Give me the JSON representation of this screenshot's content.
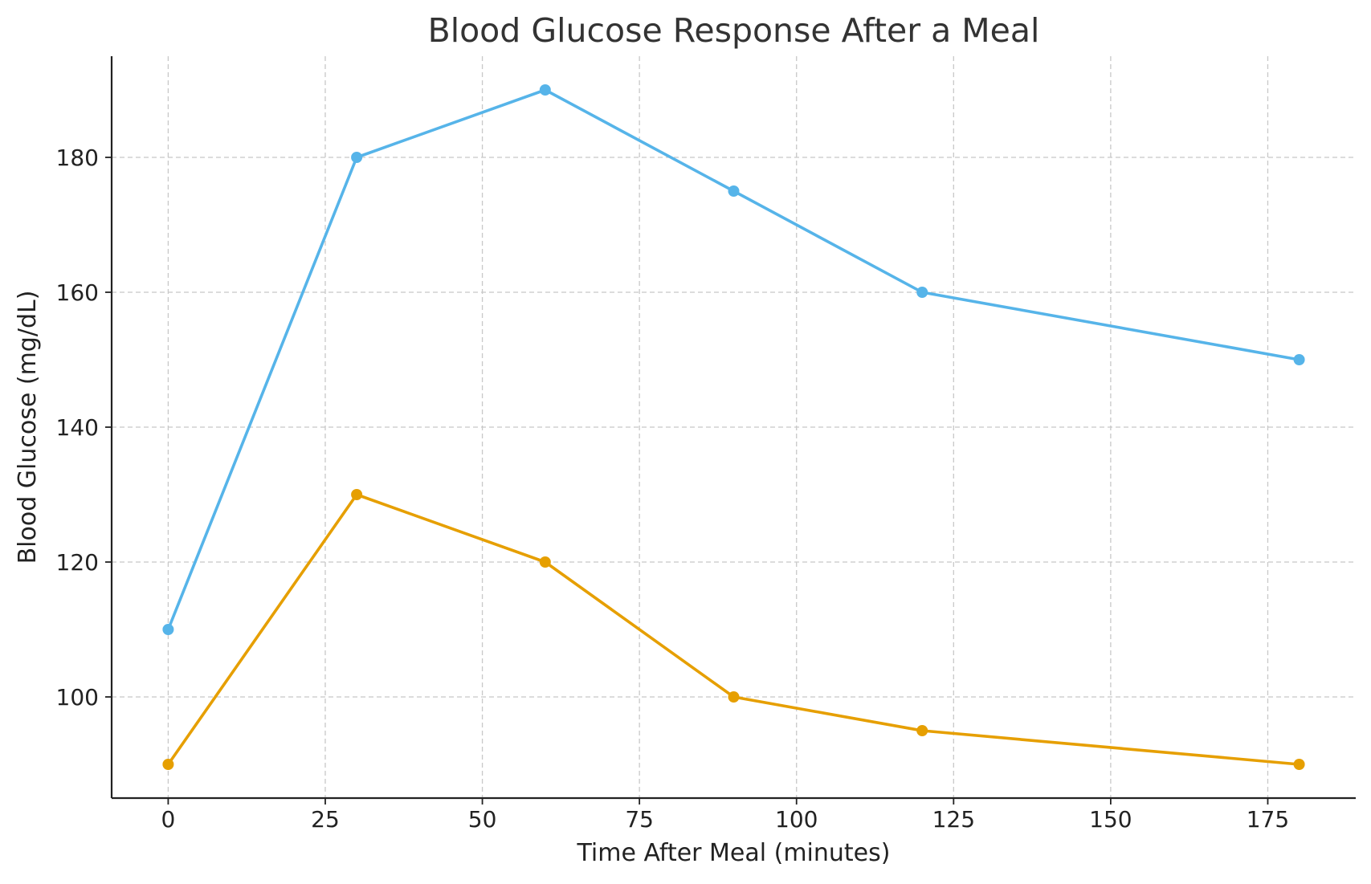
{
  "chart_data": {
    "type": "line",
    "title": "Blood Glucose Response After a Meal",
    "xlabel": "Time After Meal (minutes)",
    "ylabel": "Blood Glucose (mg/dL)",
    "x": [
      0,
      30,
      60,
      90,
      120,
      180
    ],
    "series": [
      {
        "values": [
          110,
          180,
          190,
          175,
          160,
          150
        ],
        "color": "#56b4e9"
      },
      {
        "values": [
          90,
          130,
          120,
          100,
          95,
          90
        ],
        "color": "#e69f00"
      }
    ],
    "xlim": [
      -9,
      189
    ],
    "ylim": [
      85,
      195
    ],
    "xticks": [
      0,
      25,
      50,
      75,
      100,
      125,
      150,
      175
    ],
    "yticks": [
      100,
      120,
      140,
      160,
      180
    ],
    "grid": true,
    "marker": "circle",
    "legend": "none"
  }
}
